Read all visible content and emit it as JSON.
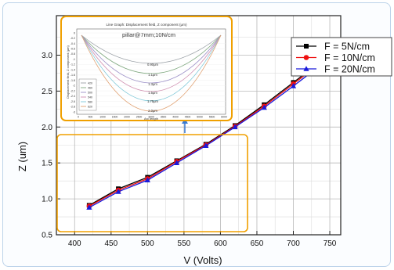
{
  "chart_data": {
    "type": "line",
    "xlabel": "V (Volts)",
    "ylabel": "Z (um)",
    "xlim": [
      375,
      765
    ],
    "ylim": [
      0.5,
      3.55
    ],
    "xticks": [
      "400",
      "450",
      "500",
      "550",
      "600",
      "650",
      "700",
      "750"
    ],
    "yticks": [
      "0.5",
      "1.0",
      "1.5",
      "2.0",
      "2.5",
      "3.0"
    ],
    "x": [
      420,
      460,
      500,
      540,
      580,
      620,
      660,
      700,
      740
    ],
    "series": [
      {
        "name": "F = 5N/cm",
        "color": "#000000",
        "marker": "square",
        "values": [
          0.91,
          1.14,
          1.3,
          1.53,
          1.76,
          2.02,
          2.31,
          2.62,
          2.93
        ]
      },
      {
        "name": "F = 10N/cm",
        "color": "#ee1111",
        "marker": "circle",
        "values": [
          0.9,
          1.12,
          1.28,
          1.52,
          1.75,
          2.01,
          2.29,
          2.6,
          2.91
        ]
      },
      {
        "name": "F = 20N/cm",
        "color": "#1a1adb",
        "marker": "triangle",
        "values": [
          0.88,
          1.1,
          1.26,
          1.5,
          1.74,
          2.0,
          2.27,
          2.57,
          2.88
        ]
      }
    ],
    "legend_position": "top-right",
    "grid": true
  },
  "inset": {
    "window_title": "Line Graph: Displacement field, Z component (μm)",
    "caption": "pillar@7mm;10N/cm",
    "ylabel": "Displacement field, Z component (μm)",
    "xlabel": "Arc length",
    "yticks": [
      "0",
      "-0.2",
      "-0.4",
      "-0.6",
      "-0.8",
      "-1",
      "-1.2",
      "-1.4",
      "-1.6",
      "-1.8",
      "-2",
      "-2.2",
      "-2.4",
      "-2.6",
      "-2.8",
      "-3"
    ],
    "xticks": [
      "0",
      "500",
      "1000",
      "1500",
      "2000",
      "2500",
      "3000",
      "3500",
      "4000",
      "4500",
      "5000",
      "5500",
      "6000"
    ],
    "curve_labels": [
      "0.90μm",
      "1.1μm",
      "1.3μm",
      "1.5μm",
      "1.75μm",
      "2.0μm"
    ],
    "curve_colors": [
      "#9aa0a6",
      "#7fa87f",
      "#9b8fc7",
      "#d08fb0",
      "#7ec8d8",
      "#e0a070"
    ],
    "legend": [
      "420",
      "460",
      "500",
      "540",
      "580",
      "620"
    ],
    "arrow_color": "#3a7bd5",
    "highlight_color": "#f0a000"
  }
}
